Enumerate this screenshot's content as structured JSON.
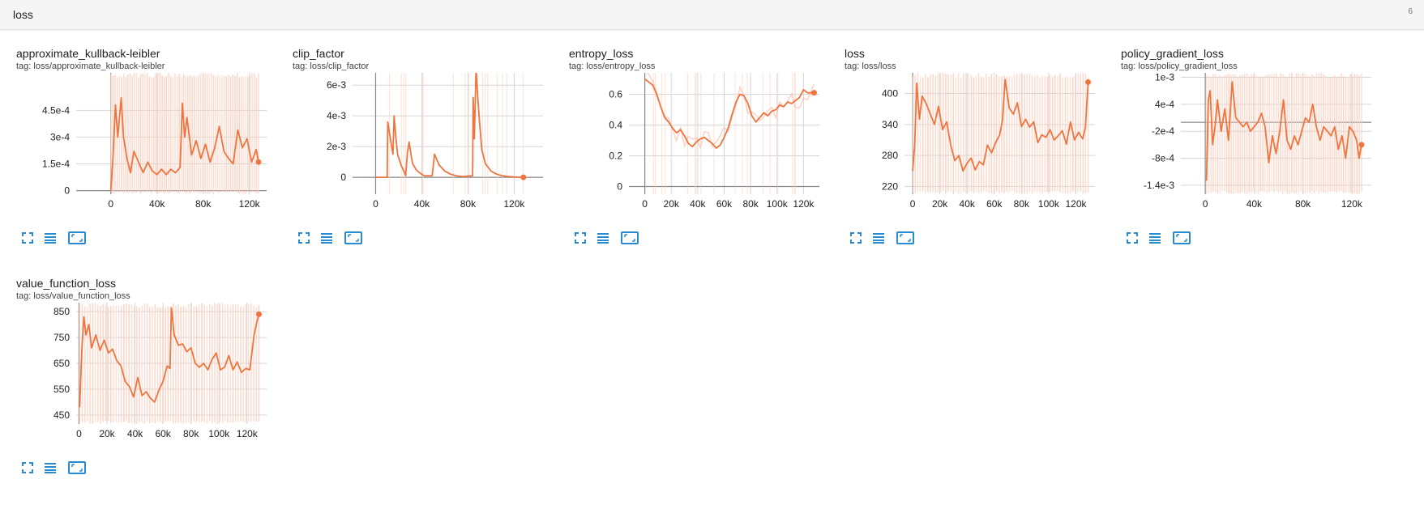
{
  "section": {
    "title": "loss",
    "count": "6"
  },
  "colors": {
    "line": "#f0743e",
    "raw": "#f7a98c",
    "band": "#fbd0bf",
    "grid": "#d6d6d6",
    "zero": "#888888",
    "icon": "#288bd2"
  },
  "cards": [
    {
      "title": "approximate_kullback-leibler",
      "tag": "tag: loss/approximate_kullback-leibler",
      "icons": [
        "expand-icon",
        "data-table-icon",
        "fit-domain-icon"
      ]
    },
    {
      "title": "clip_factor",
      "tag": "tag: loss/clip_factor",
      "icons": [
        "expand-icon",
        "data-table-icon",
        "fit-domain-icon"
      ]
    },
    {
      "title": "entropy_loss",
      "tag": "tag: loss/entropy_loss",
      "icons": [
        "expand-icon",
        "data-table-icon",
        "fit-domain-icon"
      ]
    },
    {
      "title": "loss",
      "tag": "tag: loss/loss",
      "icons": [
        "expand-icon",
        "data-table-icon",
        "fit-domain-icon"
      ]
    },
    {
      "title": "policy_gradient_loss",
      "tag": "tag: loss/policy_gradient_loss",
      "icons": [
        "expand-icon",
        "data-table-icon",
        "fit-domain-icon"
      ]
    },
    {
      "title": "value_function_loss",
      "tag": "tag: loss/value_function_loss",
      "icons": [
        "expand-icon",
        "data-table-icon",
        "fit-domain-icon"
      ]
    }
  ],
  "chart_data": [
    {
      "type": "line",
      "title": "approximate_kullback-leibler",
      "xlim": [
        -30000,
        135000
      ],
      "ylim": [
        -2e-05,
        0.00066
      ],
      "xticks": [
        0,
        40000,
        80000,
        120000
      ],
      "xtick_labels": [
        "0",
        "40k",
        "80k",
        "120k"
      ],
      "yticks": [
        0,
        0.00015,
        0.0003,
        0.00045
      ],
      "ytick_labels": [
        "0",
        "1.5e-4",
        "3e-4",
        "4.5e-4"
      ],
      "band": true,
      "x": [
        0,
        2000,
        4000,
        6000,
        9000,
        11000,
        14000,
        17000,
        20000,
        24000,
        28000,
        32000,
        36000,
        40000,
        44000,
        48000,
        52000,
        56000,
        60000,
        62000,
        64000,
        66000,
        70000,
        74000,
        78000,
        82000,
        86000,
        90000,
        94000,
        98000,
        102000,
        106000,
        110000,
        114000,
        118000,
        122000,
        126000,
        128000
      ],
      "y": [
        0,
        0.0002,
        0.00048,
        0.0003,
        0.00052,
        0.0003,
        0.00018,
        0.0001,
        0.00022,
        0.00016,
        0.0001,
        0.00016,
        0.00011,
        9e-05,
        0.00012,
        9e-05,
        0.00012,
        0.0001,
        0.00013,
        0.00049,
        0.0003,
        0.00041,
        0.0002,
        0.00028,
        0.00018,
        0.00026,
        0.00016,
        0.00024,
        0.00036,
        0.00022,
        0.00018,
        0.00015,
        0.00034,
        0.00024,
        0.00029,
        0.00016,
        0.00023,
        0.00016
      ],
      "endpoint": [
        128000,
        0.00016
      ]
    },
    {
      "type": "line",
      "title": "clip_factor",
      "xlim": [
        -20000,
        145000
      ],
      "ylim": [
        -0.0011,
        0.0068
      ],
      "xticks": [
        0,
        40000,
        80000,
        120000
      ],
      "xtick_labels": [
        "0",
        "40k",
        "80k",
        "120k"
      ],
      "yticks": [
        0,
        0.002,
        0.004,
        0.006
      ],
      "ytick_labels": [
        "0",
        "2e-3",
        "4e-3",
        "6e-3"
      ],
      "band": false,
      "x": [
        0,
        10000,
        10500,
        13000,
        15000,
        16000,
        17500,
        19000,
        22000,
        25000,
        26000,
        27500,
        29000,
        31000,
        32000,
        35000,
        38000,
        40000,
        42000,
        49000,
        51000,
        55000,
        60000,
        65000,
        70000,
        75000,
        84000,
        84500,
        85500,
        87000,
        88500,
        90000,
        92000,
        95000,
        100000,
        105000,
        110000,
        115000,
        120000,
        128000
      ],
      "y": [
        0,
        0,
        0.0036,
        0.0024,
        0.0015,
        0.004,
        0.0026,
        0.0015,
        0.0008,
        0.0003,
        0.0001,
        0.0016,
        0.0023,
        0.0013,
        0.0009,
        0.0005,
        0.0003,
        0.0002,
        0.0001,
        0.0001,
        0.0015,
        0.0008,
        0.0004,
        0.0002,
        0.0001,
        5e-05,
        0.0001,
        0.0052,
        0.0025,
        0.0071,
        0.0052,
        0.0036,
        0.0018,
        0.0009,
        0.0004,
        0.0002,
        0.0001,
        5e-05,
        2e-05,
        0
      ],
      "endpoint": [
        128000,
        0
      ]
    },
    {
      "type": "line",
      "title": "entropy_loss",
      "xlim": [
        -12000,
        132000
      ],
      "ylim": [
        -0.05,
        0.74
      ],
      "xticks": [
        0,
        20000,
        40000,
        60000,
        80000,
        100000,
        120000
      ],
      "xtick_labels": [
        "0",
        "20k",
        "40k",
        "60k",
        "80k",
        "100k",
        "120k"
      ],
      "yticks": [
        0,
        0.2,
        0.4,
        0.6
      ],
      "ytick_labels": [
        "0",
        "0.2",
        "0.4",
        "0.6"
      ],
      "band": false,
      "raw": true,
      "x": [
        0,
        3000,
        6000,
        9000,
        12000,
        15000,
        18000,
        21000,
        24000,
        27000,
        30000,
        33000,
        36000,
        39000,
        42000,
        45000,
        48000,
        51000,
        54000,
        57000,
        60000,
        63000,
        66000,
        69000,
        72000,
        75000,
        78000,
        81000,
        84000,
        87000,
        90000,
        93000,
        96000,
        99000,
        102000,
        105000,
        108000,
        111000,
        114000,
        117000,
        120000,
        123000,
        128000
      ],
      "y": [
        0.7,
        0.68,
        0.66,
        0.6,
        0.52,
        0.45,
        0.42,
        0.38,
        0.35,
        0.37,
        0.33,
        0.28,
        0.26,
        0.29,
        0.31,
        0.32,
        0.3,
        0.28,
        0.25,
        0.27,
        0.32,
        0.38,
        0.47,
        0.55,
        0.6,
        0.59,
        0.54,
        0.46,
        0.42,
        0.45,
        0.48,
        0.46,
        0.49,
        0.5,
        0.53,
        0.52,
        0.55,
        0.54,
        0.56,
        0.58,
        0.63,
        0.61,
        0.61
      ],
      "endpoint": [
        128000,
        0.61
      ]
    },
    {
      "type": "line",
      "title": "loss",
      "xlim": [
        -6000,
        134000
      ],
      "ylim": [
        205,
        440
      ],
      "xticks": [
        0,
        20000,
        40000,
        60000,
        80000,
        100000,
        120000
      ],
      "xtick_labels": [
        "0",
        "20k",
        "40k",
        "60k",
        "80k",
        "100k",
        "120k"
      ],
      "yticks": [
        220,
        280,
        340,
        400
      ],
      "ytick_labels": [
        "220",
        "280",
        "340",
        "400"
      ],
      "band": true,
      "x": [
        0,
        1500,
        3000,
        5000,
        7000,
        10000,
        13000,
        16000,
        19000,
        22000,
        25000,
        28000,
        31000,
        34000,
        37000,
        40000,
        43000,
        46000,
        49000,
        52000,
        55000,
        58000,
        61000,
        64000,
        66000,
        68000,
        71000,
        74000,
        77000,
        80000,
        83000,
        86000,
        89000,
        92000,
        95000,
        98000,
        101000,
        104000,
        107000,
        110000,
        113000,
        116000,
        119000,
        122000,
        125000,
        127000,
        129000
      ],
      "y": [
        250,
        300,
        420,
        350,
        395,
        380,
        360,
        340,
        375,
        330,
        345,
        300,
        270,
        280,
        250,
        265,
        275,
        252,
        268,
        262,
        300,
        285,
        305,
        320,
        348,
        427,
        372,
        360,
        382,
        336,
        350,
        335,
        345,
        305,
        320,
        315,
        330,
        310,
        318,
        328,
        302,
        345,
        310,
        325,
        312,
        335,
        422
      ],
      "endpoint": [
        129000,
        422
      ]
    },
    {
      "type": "line",
      "title": "policy_gradient_loss",
      "xlim": [
        -20000,
        136000
      ],
      "ylim": [
        -0.0016,
        0.0011
      ],
      "xticks": [
        0,
        40000,
        80000,
        120000
      ],
      "xtick_labels": [
        "0",
        "40k",
        "80k",
        "120k"
      ],
      "yticks": [
        -0.0014,
        -0.0008,
        -0.0002,
        0.0004,
        0.001
      ],
      "ytick_labels": [
        "-1.4e-3",
        "-8e-4",
        "-2e-4",
        "4e-4",
        "1e-3"
      ],
      "band": true,
      "x": [
        1000,
        2500,
        4000,
        6000,
        8000,
        10000,
        13000,
        16000,
        19000,
        22000,
        25000,
        28000,
        31000,
        34000,
        37000,
        40000,
        43000,
        46000,
        49000,
        52000,
        55000,
        58000,
        61000,
        64000,
        67000,
        70000,
        73000,
        76000,
        79000,
        82000,
        85000,
        88000,
        91000,
        94000,
        97000,
        100000,
        103000,
        106000,
        109000,
        112000,
        115000,
        118000,
        121000,
        124000,
        126000,
        128000
      ],
      "y": [
        -0.0013,
        0.0005,
        0.0007,
        -0.0005,
        -0.0001,
        0.0005,
        -0.0002,
        0.0003,
        -0.0004,
        0.0009,
        0.0001,
        0,
        -0.0001,
        0,
        -0.0002,
        -0.0001,
        0,
        0.0002,
        -0.0001,
        -0.0009,
        -0.0003,
        -0.0007,
        -0.0002,
        0.0005,
        -0.0004,
        -0.0006,
        -0.0003,
        -0.0005,
        -0.0002,
        0.0001,
        0,
        0.0004,
        -0.0001,
        -0.0004,
        -0.0001,
        -0.0002,
        -0.0003,
        -0.0001,
        -0.0006,
        -0.0003,
        -0.0008,
        -0.0001,
        -0.0002,
        -0.0004,
        -0.0008,
        -0.0005
      ],
      "endpoint": [
        128000,
        -0.0005
      ]
    },
    {
      "type": "line",
      "title": "value_function_loss",
      "xlim": [
        -2000,
        134000
      ],
      "ylim": [
        415,
        885
      ],
      "xticks": [
        0,
        20000,
        40000,
        60000,
        80000,
        100000,
        120000
      ],
      "xtick_labels": [
        "0",
        "20k",
        "40k",
        "60k",
        "80k",
        "100k",
        "120k"
      ],
      "yticks": [
        450,
        550,
        650,
        750,
        850
      ],
      "ytick_labels": [
        "450",
        "550",
        "650",
        "750",
        "850"
      ],
      "band": true,
      "x": [
        500,
        2000,
        3500,
        5000,
        7000,
        9000,
        12000,
        15000,
        18000,
        21000,
        24000,
        27000,
        30000,
        33000,
        36000,
        39000,
        42000,
        45000,
        48000,
        51000,
        54000,
        57000,
        60000,
        63000,
        65000,
        66000,
        68000,
        71000,
        74000,
        77000,
        80000,
        83000,
        86000,
        89000,
        92000,
        95000,
        98000,
        101000,
        104000,
        107000,
        110000,
        113000,
        116000,
        119000,
        122000,
        125000,
        127000,
        128500
      ],
      "y": [
        480,
        700,
        830,
        760,
        800,
        710,
        760,
        700,
        740,
        690,
        705,
        660,
        640,
        580,
        560,
        520,
        595,
        525,
        540,
        515,
        500,
        545,
        580,
        640,
        630,
        865,
        760,
        720,
        725,
        695,
        710,
        650,
        635,
        650,
        625,
        665,
        690,
        625,
        635,
        680,
        625,
        655,
        615,
        630,
        625,
        760,
        810,
        840
      ],
      "endpoint": [
        128500,
        840
      ]
    }
  ]
}
